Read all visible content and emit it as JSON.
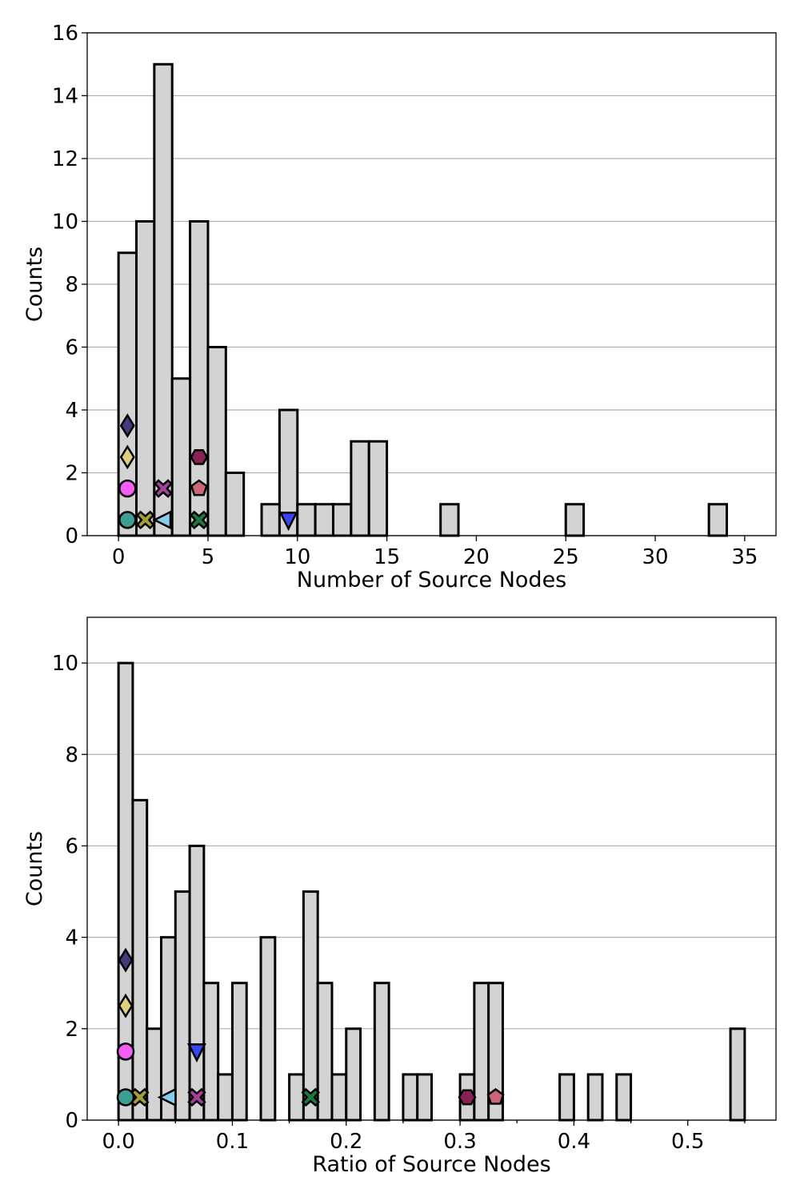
{
  "chart_data": [
    {
      "type": "bar",
      "xlabel": "Number of Source Nodes",
      "ylabel": "Counts",
      "xlim": [
        -1.75,
        36.75
      ],
      "ylim": [
        0,
        16
      ],
      "xticks": [
        0,
        5,
        10,
        15,
        20,
        25,
        30,
        35
      ],
      "xtick_labels": [
        "0",
        "5",
        "10",
        "15",
        "20",
        "25",
        "30",
        "35"
      ],
      "yticks": [
        0,
        2,
        4,
        6,
        8,
        10,
        12,
        14,
        16
      ],
      "ytick_labels": [
        "0",
        "2",
        "4",
        "6",
        "8",
        "10",
        "12",
        "14",
        "16"
      ],
      "grid": "y",
      "bin_width": 1,
      "bin_starts": [
        0,
        1,
        2,
        3,
        4,
        5,
        6,
        8,
        9,
        10,
        11,
        12,
        13,
        14,
        18,
        25,
        33
      ],
      "counts": [
        9,
        10,
        15,
        5,
        10,
        6,
        2,
        1,
        4,
        1,
        1,
        1,
        3,
        3,
        1,
        1,
        1
      ],
      "markers": [
        {
          "x": 0.5,
          "y": 0.5,
          "shape": "circle",
          "color": "#3d9e93"
        },
        {
          "x": 0.5,
          "y": 1.5,
          "shape": "circle",
          "color": "#f55ef5"
        },
        {
          "x": 0.5,
          "y": 2.5,
          "shape": "diamond",
          "color": "#e0cf7f"
        },
        {
          "x": 0.5,
          "y": 3.5,
          "shape": "diamond",
          "color": "#453a7c"
        },
        {
          "x": 1.5,
          "y": 0.5,
          "shape": "x",
          "color": "#a79c3a"
        },
        {
          "x": 2.5,
          "y": 0.5,
          "shape": "triangle-left",
          "color": "#87ccee"
        },
        {
          "x": 2.5,
          "y": 1.5,
          "shape": "x",
          "color": "#a6419b"
        },
        {
          "x": 4.5,
          "y": 0.5,
          "shape": "x",
          "color": "#1d7a3e"
        },
        {
          "x": 4.5,
          "y": 1.5,
          "shape": "pentagon",
          "color": "#cc6677"
        },
        {
          "x": 4.5,
          "y": 2.5,
          "shape": "hexagon",
          "color": "#882255"
        },
        {
          "x": 9.5,
          "y": 0.5,
          "shape": "triangle-down",
          "color": "#3b44f2"
        }
      ]
    },
    {
      "type": "bar",
      "xlabel": "Ratio of Source Nodes",
      "ylabel": "Counts",
      "xlim": [
        -0.0275,
        0.5775
      ],
      "ylim": [
        0,
        11
      ],
      "xticks": [
        0.0,
        0.1,
        0.2,
        0.3,
        0.4,
        0.5
      ],
      "xtick_labels": [
        "0.0",
        "0.1",
        "0.2",
        "0.3",
        "0.4",
        "0.5"
      ],
      "minor_xticks": [
        0.05,
        0.15,
        0.25,
        0.35,
        0.45,
        0.55
      ],
      "yticks": [
        0,
        2,
        4,
        6,
        8,
        10
      ],
      "ytick_labels": [
        "0",
        "2",
        "4",
        "6",
        "8",
        "10"
      ],
      "grid": "y",
      "bin_width": 0.0125,
      "bin_starts": [
        0.0,
        0.0125,
        0.025,
        0.0375,
        0.05,
        0.0625,
        0.075,
        0.0875,
        0.1,
        0.125,
        0.15,
        0.1625,
        0.175,
        0.1875,
        0.2,
        0.225,
        0.25,
        0.2625,
        0.3,
        0.3125,
        0.325,
        0.3875,
        0.4125,
        0.4375,
        0.5375
      ],
      "counts": [
        10,
        7,
        2,
        4,
        5,
        6,
        3,
        1,
        3,
        4,
        1,
        5,
        3,
        1,
        2,
        3,
        1,
        1,
        1,
        3,
        3,
        1,
        1,
        1,
        2
      ],
      "markers": [
        {
          "x": 0.00625,
          "y": 0.5,
          "shape": "circle",
          "color": "#3d9e93"
        },
        {
          "x": 0.00625,
          "y": 1.5,
          "shape": "circle",
          "color": "#f55ef5"
        },
        {
          "x": 0.00625,
          "y": 2.5,
          "shape": "diamond",
          "color": "#e0cf7f"
        },
        {
          "x": 0.00625,
          "y": 3.5,
          "shape": "diamond",
          "color": "#453a7c"
        },
        {
          "x": 0.01875,
          "y": 0.5,
          "shape": "x",
          "color": "#a79c3a"
        },
        {
          "x": 0.04375,
          "y": 0.5,
          "shape": "triangle-left",
          "color": "#87ccee"
        },
        {
          "x": 0.06875,
          "y": 0.5,
          "shape": "x",
          "color": "#a6419b"
        },
        {
          "x": 0.06875,
          "y": 1.5,
          "shape": "triangle-down",
          "color": "#3b44f2"
        },
        {
          "x": 0.16875,
          "y": 0.5,
          "shape": "x",
          "color": "#1d7a3e"
        },
        {
          "x": 0.30625,
          "y": 0.5,
          "shape": "hexagon",
          "color": "#882255"
        },
        {
          "x": 0.33125,
          "y": 0.5,
          "shape": "pentagon",
          "color": "#cc6677"
        }
      ]
    }
  ]
}
